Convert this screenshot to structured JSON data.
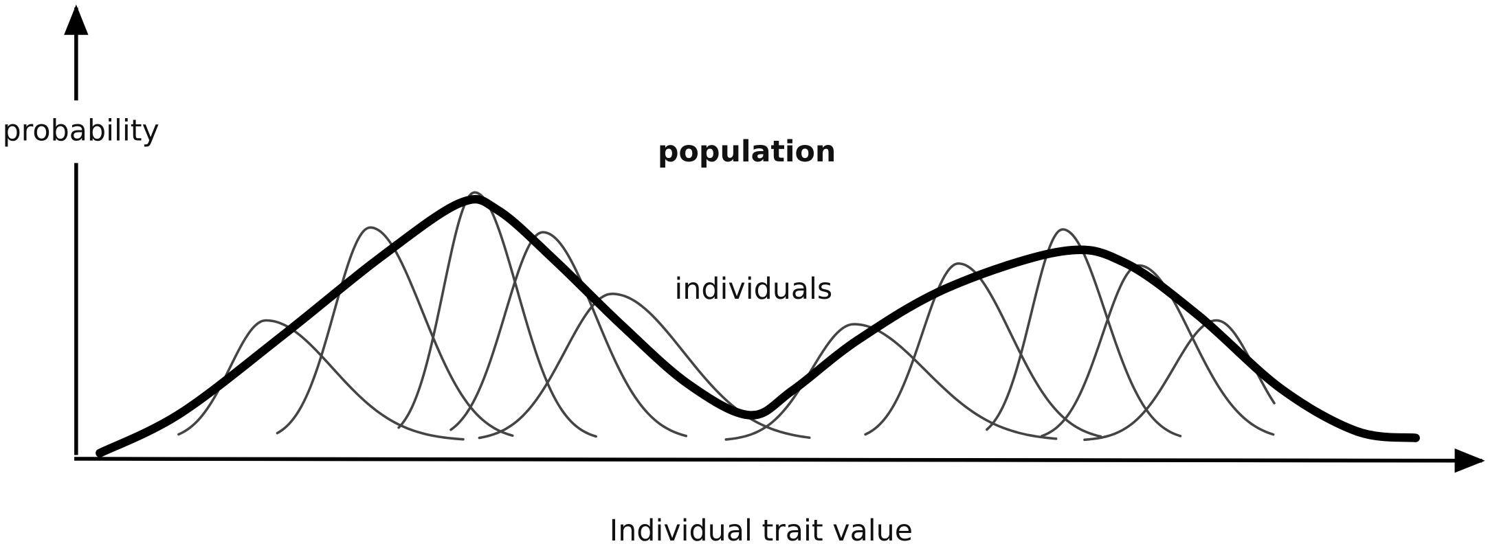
{
  "labels": {
    "y_axis": "probability",
    "population": "population",
    "individuals": "individuals",
    "x_axis": "Individual trait value"
  }
}
